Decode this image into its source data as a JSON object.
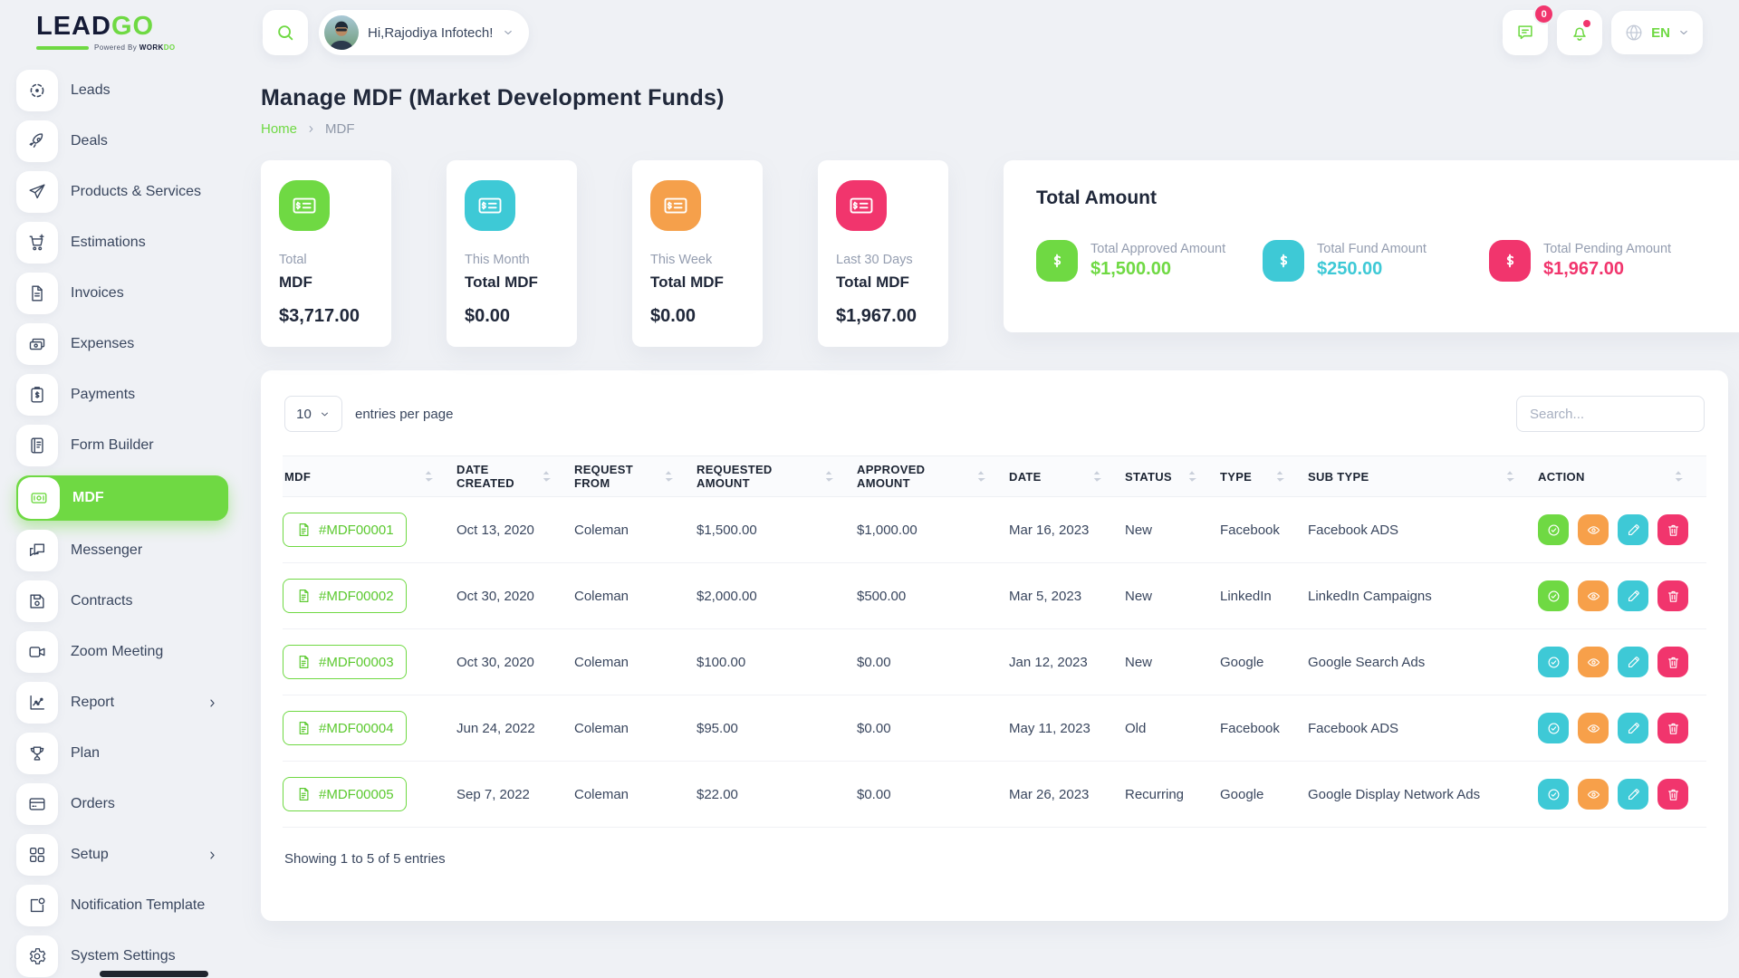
{
  "brand": {
    "lead": "LEAD",
    "go": "GO",
    "powered_prefix": "Powered By",
    "powered_work": "WORK",
    "powered_do": "DO"
  },
  "topbar": {
    "greeting": "Hi,Rajodiya Infotech!",
    "message_badge": "0",
    "language": "EN"
  },
  "colors": {
    "green": "#6fd943",
    "cyan": "#3ec9d6",
    "orange": "#f5a04b",
    "pink": "#f1356d"
  },
  "sidebar": {
    "items": [
      {
        "label": "Leads",
        "icon": "leads-icon",
        "active": false,
        "has_submenu": false
      },
      {
        "label": "Deals",
        "icon": "deals-icon",
        "active": false,
        "has_submenu": false
      },
      {
        "label": "Products & Services",
        "icon": "products-services-icon",
        "active": false,
        "has_submenu": false
      },
      {
        "label": "Estimations",
        "icon": "estimations-icon",
        "active": false,
        "has_submenu": false
      },
      {
        "label": "Invoices",
        "icon": "invoices-icon",
        "active": false,
        "has_submenu": false
      },
      {
        "label": "Expenses",
        "icon": "expenses-icon",
        "active": false,
        "has_submenu": false
      },
      {
        "label": "Payments",
        "icon": "payments-icon",
        "active": false,
        "has_submenu": false
      },
      {
        "label": "Form Builder",
        "icon": "form-builder-icon",
        "active": false,
        "has_submenu": false
      },
      {
        "label": "MDF",
        "icon": "mdf-icon",
        "active": true,
        "has_submenu": false
      },
      {
        "label": "Messenger",
        "icon": "messenger-icon",
        "active": false,
        "has_submenu": false
      },
      {
        "label": "Contracts",
        "icon": "contracts-icon",
        "active": false,
        "has_submenu": false
      },
      {
        "label": "Zoom Meeting",
        "icon": "zoom-meeting-icon",
        "active": false,
        "has_submenu": false
      },
      {
        "label": "Report",
        "icon": "report-icon",
        "active": false,
        "has_submenu": true
      },
      {
        "label": "Plan",
        "icon": "plan-icon",
        "active": false,
        "has_submenu": false
      },
      {
        "label": "Orders",
        "icon": "orders-icon",
        "active": false,
        "has_submenu": false
      },
      {
        "label": "Setup",
        "icon": "setup-icon",
        "active": false,
        "has_submenu": true
      },
      {
        "label": "Notification Template",
        "icon": "notification-template-icon",
        "active": false,
        "has_submenu": false
      },
      {
        "label": "System Settings",
        "icon": "system-settings-icon",
        "active": false,
        "has_submenu": false
      }
    ]
  },
  "page": {
    "title": "Manage MDF (Market Development Funds)",
    "breadcrumb": [
      "Home",
      "MDF"
    ]
  },
  "stat_cards": [
    {
      "period": "Total",
      "label": "MDF",
      "amount": "$3,717.00",
      "color": "#6fd943"
    },
    {
      "period": "This Month",
      "label": "Total MDF",
      "amount": "$0.00",
      "color": "#3ec9d6"
    },
    {
      "period": "This Week",
      "label": "Total MDF",
      "amount": "$0.00",
      "color": "#f5a04b"
    },
    {
      "period": "Last 30 Days",
      "label": "Total MDF",
      "amount": "$1,967.00",
      "color": "#f1356d"
    }
  ],
  "total_amount": {
    "title": "Total Amount",
    "items": [
      {
        "label": "Total Approved Amount",
        "amount": "$1,500.00",
        "color": "#6fd943"
      },
      {
        "label": "Total Fund Amount",
        "amount": "$250.00",
        "color": "#3ec9d6"
      },
      {
        "label": "Total Pending Amount",
        "amount": "$1,967.00",
        "color": "#f1356d"
      }
    ]
  },
  "table": {
    "entries_value": "10",
    "entries_label": "entries per page",
    "search_placeholder": "Search...",
    "columns": [
      "MDF",
      "DATE CREATED",
      "REQUEST FROM",
      "REQUESTED AMOUNT",
      "APPROVED AMOUNT",
      "DATE",
      "STATUS",
      "TYPE",
      "SUB TYPE",
      "ACTION"
    ],
    "rows": [
      {
        "mdf": "#MDF00001",
        "date_created": "Oct 13, 2020",
        "request_from": "Coleman",
        "requested_amount": "$1,500.00",
        "approved_amount": "$1,000.00",
        "date": "Mar 16, 2023",
        "status": "New",
        "type": "Facebook",
        "sub_type": "Facebook ADS",
        "approve_style": "green"
      },
      {
        "mdf": "#MDF00002",
        "date_created": "Oct 30, 2020",
        "request_from": "Coleman",
        "requested_amount": "$2,000.00",
        "approved_amount": "$500.00",
        "date": "Mar 5, 2023",
        "status": "New",
        "type": "LinkedIn",
        "sub_type": "LinkedIn Campaigns",
        "approve_style": "green"
      },
      {
        "mdf": "#MDF00003",
        "date_created": "Oct 30, 2020",
        "request_from": "Coleman",
        "requested_amount": "$100.00",
        "approved_amount": "$0.00",
        "date": "Jan 12, 2023",
        "status": "New",
        "type": "Google",
        "sub_type": "Google Search Ads",
        "approve_style": "teal"
      },
      {
        "mdf": "#MDF00004",
        "date_created": "Jun 24, 2022",
        "request_from": "Coleman",
        "requested_amount": "$95.00",
        "approved_amount": "$0.00",
        "date": "May 11, 2023",
        "status": "Old",
        "type": "Facebook",
        "sub_type": "Facebook ADS",
        "approve_style": "teal"
      },
      {
        "mdf": "#MDF00005",
        "date_created": "Sep 7, 2022",
        "request_from": "Coleman",
        "requested_amount": "$22.00",
        "approved_amount": "$0.00",
        "date": "Mar 26, 2023",
        "status": "Recurring",
        "type": "Google",
        "sub_type": "Google Display Network Ads",
        "approve_style": "teal"
      }
    ],
    "footer": "Showing 1 to 5 of 5 entries"
  }
}
